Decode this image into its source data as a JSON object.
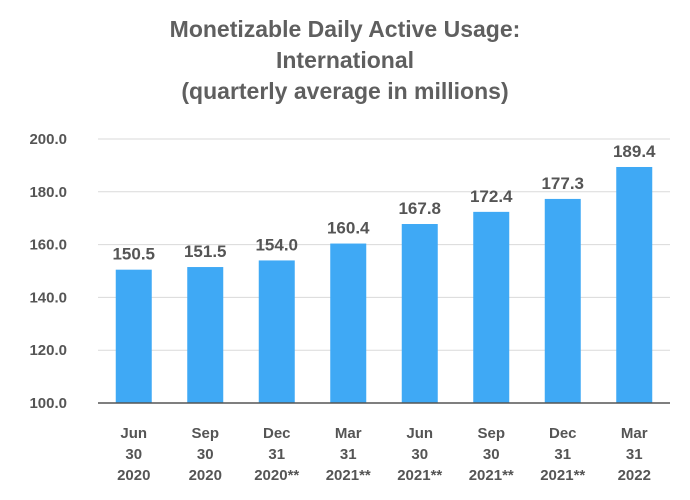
{
  "chart_data": {
    "type": "bar",
    "title_lines": [
      "Monetizable Daily Active Usage:",
      "International",
      "(quarterly average in millions)"
    ],
    "categories": [
      [
        "Jun",
        "30",
        "2020"
      ],
      [
        "Sep",
        "30",
        "2020"
      ],
      [
        "Dec",
        "31",
        "2020**"
      ],
      [
        "Mar",
        "31",
        "2021**"
      ],
      [
        "Jun",
        "30",
        "2021**"
      ],
      [
        "Sep",
        "30",
        "2021**"
      ],
      [
        "Dec",
        "31",
        "2021**"
      ],
      [
        "Mar",
        "31",
        "2022"
      ]
    ],
    "values": [
      150.5,
      151.5,
      154.0,
      160.4,
      167.8,
      172.4,
      177.3,
      189.4
    ],
    "data_labels": [
      "150.5",
      "151.5",
      "154.0",
      "160.4",
      "167.8",
      "172.4",
      "177.3",
      "189.4"
    ],
    "yticks": [
      "100.0",
      "120.0",
      "140.0",
      "160.0",
      "180.0",
      "200.0"
    ],
    "ylim": [
      100,
      200
    ],
    "xlabel": "",
    "ylabel": "",
    "grid": true,
    "colors": {
      "bar": "#3fa9f5",
      "grid": "#dadada",
      "axis": "#555555",
      "text": "#555555"
    }
  }
}
